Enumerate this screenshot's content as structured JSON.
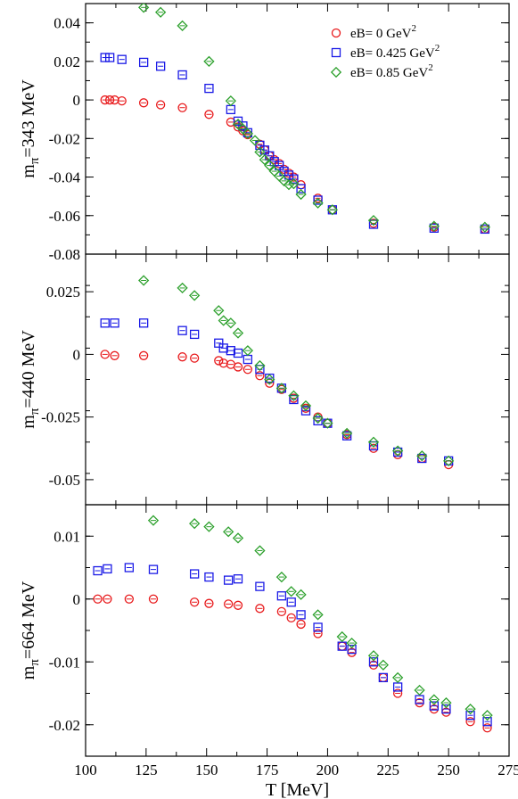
{
  "chart_data": [
    {
      "type": "scatter",
      "ylabel": "m_π=343 MeV",
      "ylim": [
        -0.08,
        0.05
      ],
      "yticks": [
        0.04,
        0.02,
        0,
        -0.02,
        -0.04,
        -0.06,
        -0.08
      ],
      "ytick_labels": [
        "0.04",
        "0.02",
        "0",
        "-0.02",
        "-0.04",
        "-0.06",
        "-0.08"
      ],
      "legend": {
        "placement": "top-right",
        "entries": [
          {
            "text": "eB= 0 GeV",
            "sup": "2"
          },
          {
            "text": "eB= 0.425 GeV",
            "sup": "2"
          },
          {
            "text": "eB= 0.85 GeV",
            "sup": "2"
          }
        ]
      },
      "series": [
        {
          "name": "eB= 0 GeV²",
          "color": "#e8191b",
          "marker": "circle",
          "x": [
            108,
            110,
            112,
            115,
            124,
            131,
            140,
            151,
            160,
            163,
            165,
            167,
            172,
            174,
            176,
            178,
            180,
            182,
            184,
            186,
            189,
            196,
            202,
            219,
            244,
            265
          ],
          "y": [
            0.0,
            0.0,
            0.0,
            -0.0005,
            -0.0015,
            -0.0025,
            -0.004,
            -0.0075,
            -0.0115,
            -0.014,
            -0.016,
            -0.018,
            -0.023,
            -0.026,
            -0.029,
            -0.031,
            -0.033,
            -0.036,
            -0.038,
            -0.04,
            -0.044,
            -0.051,
            -0.057,
            -0.064,
            -0.066,
            -0.067
          ]
        },
        {
          "name": "eB= 0.425 GeV²",
          "color": "#1a1ae6",
          "marker": "square",
          "x": [
            108,
            110,
            115,
            124,
            131,
            140,
            151,
            160,
            163,
            165,
            167,
            172,
            174,
            176,
            178,
            180,
            182,
            184,
            186,
            189,
            196,
            202,
            219,
            244,
            265
          ],
          "y": [
            0.022,
            0.022,
            0.021,
            0.0195,
            0.0175,
            0.013,
            0.006,
            -0.005,
            -0.011,
            -0.0135,
            -0.017,
            -0.0235,
            -0.026,
            -0.029,
            -0.032,
            -0.034,
            -0.037,
            -0.039,
            -0.041,
            -0.046,
            -0.052,
            -0.057,
            -0.0645,
            -0.0665,
            -0.067
          ]
        },
        {
          "name": "eB= 0.85 GeV²",
          "color": "#2ca02c",
          "marker": "diamond",
          "x": [
            124,
            131,
            140,
            151,
            160,
            163,
            165,
            167,
            170,
            172,
            174,
            176,
            178,
            180,
            182,
            184,
            186,
            189,
            196,
            202,
            219,
            244,
            265
          ],
          "y": [
            0.048,
            0.0455,
            0.0385,
            0.02,
            -0.0005,
            -0.0125,
            -0.015,
            -0.0175,
            -0.021,
            -0.027,
            -0.031,
            -0.034,
            -0.037,
            -0.0395,
            -0.042,
            -0.044,
            -0.0435,
            -0.049,
            -0.0535,
            -0.057,
            -0.0625,
            -0.0655,
            -0.066
          ]
        }
      ]
    },
    {
      "type": "scatter",
      "ylabel": "m_π=440 MeV",
      "ylim": [
        -0.06,
        0.04
      ],
      "yticks": [
        0.025,
        0,
        -0.025,
        -0.05
      ],
      "ytick_labels": [
        "0.025",
        "0",
        "-0.025",
        "-0.05"
      ],
      "series": [
        {
          "name": "eB= 0 GeV²",
          "color": "#e8191b",
          "marker": "circle",
          "x": [
            108,
            112,
            124,
            140,
            145,
            155,
            157,
            160,
            163,
            167,
            172,
            176,
            181,
            186,
            191,
            196,
            200,
            208,
            219,
            229,
            239,
            250
          ],
          "y": [
            0.0,
            -0.0005,
            -0.0005,
            -0.001,
            -0.0015,
            -0.0025,
            -0.0035,
            -0.004,
            -0.005,
            -0.006,
            -0.0085,
            -0.0115,
            -0.014,
            -0.0175,
            -0.0215,
            -0.025,
            -0.0275,
            -0.032,
            -0.0375,
            -0.04,
            -0.0415,
            -0.044
          ]
        },
        {
          "name": "eB= 0.425 GeV²",
          "color": "#1a1ae6",
          "marker": "square",
          "x": [
            108,
            112,
            124,
            140,
            145,
            155,
            157,
            160,
            163,
            167,
            172,
            176,
            181,
            186,
            191,
            196,
            200,
            208,
            219,
            229,
            239,
            250
          ],
          "y": [
            0.0125,
            0.0125,
            0.0125,
            0.0095,
            0.008,
            0.0045,
            0.0025,
            0.0015,
            0.0005,
            -0.002,
            -0.006,
            -0.0095,
            -0.0135,
            -0.018,
            -0.0225,
            -0.0265,
            -0.0275,
            -0.0325,
            -0.0365,
            -0.039,
            -0.0415,
            -0.0425
          ]
        },
        {
          "name": "eB= 0.85 GeV²",
          "color": "#2ca02c",
          "marker": "diamond",
          "x": [
            124,
            140,
            145,
            155,
            157,
            160,
            163,
            167,
            172,
            176,
            181,
            186,
            191,
            196,
            200,
            208,
            219,
            229,
            239,
            250
          ],
          "y": [
            0.0295,
            0.0265,
            0.0235,
            0.0175,
            0.0135,
            0.0125,
            0.0085,
            0.0015,
            -0.0045,
            -0.01,
            -0.0135,
            -0.0165,
            -0.0205,
            -0.0255,
            -0.0275,
            -0.0315,
            -0.035,
            -0.0385,
            -0.0405,
            -0.0425
          ]
        }
      ]
    },
    {
      "type": "scatter",
      "ylabel": "m_π=664 MeV",
      "xlabel": "T [MeV]",
      "xlim": [
        100,
        275
      ],
      "xticks": [
        100,
        125,
        150,
        175,
        200,
        225,
        250,
        275
      ],
      "xtick_labels": [
        "100",
        "125",
        "150",
        "175",
        "200",
        "225",
        "250",
        "275"
      ],
      "ylim": [
        -0.025,
        0.015
      ],
      "yticks": [
        0.01,
        0,
        -0.01,
        -0.02
      ],
      "ytick_labels": [
        "0.01",
        "0",
        "-0.01",
        "-0.02"
      ],
      "series": [
        {
          "name": "eB= 0 GeV²",
          "color": "#e8191b",
          "marker": "circle",
          "x": [
            105,
            109,
            118,
            128,
            145,
            151,
            159,
            163,
            172,
            181,
            185,
            189,
            196,
            206,
            210,
            219,
            223,
            229,
            238,
            244,
            249,
            259,
            266
          ],
          "y": [
            0.0,
            0.0,
            0.0,
            0.0,
            -0.0005,
            -0.0007,
            -0.0008,
            -0.001,
            -0.0015,
            -0.002,
            -0.003,
            -0.004,
            -0.0055,
            -0.0075,
            -0.0085,
            -0.0105,
            -0.0125,
            -0.015,
            -0.0165,
            -0.0175,
            -0.018,
            -0.0195,
            -0.0205
          ]
        },
        {
          "name": "eB= 0.425 GeV²",
          "color": "#1a1ae6",
          "marker": "square",
          "x": [
            105,
            109,
            118,
            128,
            145,
            151,
            159,
            163,
            172,
            181,
            185,
            189,
            196,
            206,
            210,
            219,
            223,
            229,
            238,
            244,
            249,
            259,
            266
          ],
          "y": [
            0.0045,
            0.0048,
            0.005,
            0.0047,
            0.004,
            0.0035,
            0.003,
            0.0032,
            0.002,
            0.0005,
            -0.0005,
            -0.0025,
            -0.0045,
            -0.0075,
            -0.008,
            -0.01,
            -0.0125,
            -0.014,
            -0.016,
            -0.017,
            -0.0175,
            -0.0185,
            -0.0195
          ]
        },
        {
          "name": "eB= 0.85 GeV²",
          "color": "#2ca02c",
          "marker": "diamond",
          "x": [
            128,
            145,
            151,
            159,
            163,
            172,
            181,
            185,
            189,
            196,
            206,
            210,
            219,
            223,
            229,
            238,
            244,
            249,
            259,
            266
          ],
          "y": [
            0.0125,
            0.012,
            0.0115,
            0.0107,
            0.0097,
            0.0077,
            0.0035,
            0.0012,
            0.0007,
            -0.0025,
            -0.006,
            -0.007,
            -0.009,
            -0.0105,
            -0.0125,
            -0.0145,
            -0.016,
            -0.0165,
            -0.0175,
            -0.0185
          ]
        }
      ]
    }
  ]
}
